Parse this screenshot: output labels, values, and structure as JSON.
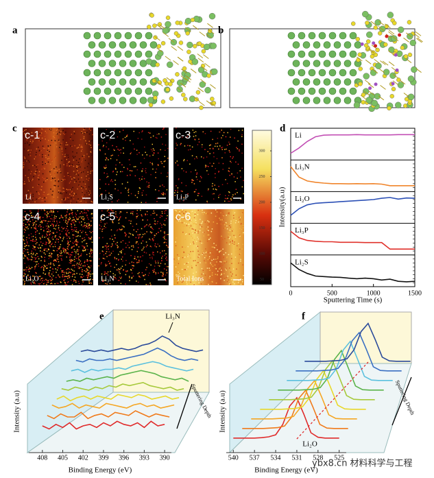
{
  "panel_a": {
    "label": "a"
  },
  "panel_b": {
    "label": "b"
  },
  "panel_c": {
    "label": "c",
    "maps": [
      {
        "tag": "c-1",
        "species": "Li"
      },
      {
        "tag": "c-2",
        "species": "Li₂S"
      },
      {
        "tag": "c-3",
        "species": "Li₃P"
      },
      {
        "tag": "c-4",
        "species": "Li₂O"
      },
      {
        "tag": "c-5",
        "species": "Li₃N"
      },
      {
        "tag": "c-6",
        "species": "Total Ions"
      }
    ],
    "colorbar_lim": [
      40,
      340
    ],
    "colorbar_ticks": [
      50,
      100,
      150,
      200,
      250,
      300
    ]
  },
  "panel_d": {
    "label": "d",
    "y_label": "Intensity(a.u)",
    "x_label": "Sputtering Time (s)",
    "xlim": [
      0,
      1500
    ],
    "xticks": [
      0,
      500,
      1000,
      1500
    ],
    "x": [
      0,
      100,
      200,
      300,
      400,
      500,
      600,
      700,
      800,
      900,
      1000,
      1100,
      1200,
      1300,
      1400,
      1500
    ],
    "series": [
      {
        "name": "Li",
        "color": "#c24fb4",
        "values": [
          0.15,
          0.35,
          0.6,
          0.78,
          0.84,
          0.85,
          0.85,
          0.85,
          0.86,
          0.85,
          0.85,
          0.85,
          0.85,
          0.86,
          0.86,
          0.86
        ]
      },
      {
        "name": "Li₃N",
        "color": "#f0842a",
        "values": [
          0.85,
          0.45,
          0.3,
          0.25,
          0.22,
          0.2,
          0.2,
          0.19,
          0.2,
          0.19,
          0.2,
          0.18,
          0.12,
          0.12,
          0.12,
          0.12
        ]
      },
      {
        "name": "Li₂O",
        "color": "#2b4fb5",
        "values": [
          0.2,
          0.45,
          0.6,
          0.66,
          0.68,
          0.7,
          0.72,
          0.74,
          0.76,
          0.78,
          0.8,
          0.85,
          0.88,
          0.82,
          0.86,
          0.85
        ]
      },
      {
        "name": "Li₃P",
        "color": "#e0302a",
        "values": [
          0.8,
          0.55,
          0.45,
          0.42,
          0.4,
          0.4,
          0.38,
          0.38,
          0.38,
          0.37,
          0.37,
          0.37,
          0.12,
          0.12,
          0.12,
          0.12
        ]
      },
      {
        "name": "Li₂S",
        "color": "#111111",
        "values": [
          0.8,
          0.55,
          0.4,
          0.3,
          0.28,
          0.26,
          0.25,
          0.22,
          0.2,
          0.22,
          0.2,
          0.15,
          0.18,
          0.1,
          0.08,
          0.1
        ]
      }
    ]
  },
  "panel_e": {
    "label": "e",
    "annotation": "Li₃N",
    "x_label": "Binding Energy (eV)",
    "y_label": "Intensity (a.u)",
    "depth_label": "Sputtering Depth",
    "xlim": [
      410,
      389
    ],
    "xticks": [
      408,
      405,
      402,
      399,
      396,
      393,
      390
    ],
    "x": [
      408,
      407,
      406,
      405,
      404,
      403,
      402,
      401,
      400,
      399,
      398,
      397,
      396,
      395,
      394,
      393,
      392,
      391,
      390
    ],
    "series": [
      {
        "color": "#e02a2a",
        "values": [
          0.2,
          0.1,
          0.25,
          0.15,
          0.3,
          0.1,
          0.2,
          0.25,
          0.15,
          0.3,
          0.2,
          0.35,
          0.25,
          0.2,
          0.3,
          0.15,
          0.35,
          0.2,
          0.25
        ]
      },
      {
        "color": "#f07a1a",
        "values": [
          0.25,
          0.15,
          0.3,
          0.2,
          0.2,
          0.35,
          0.15,
          0.25,
          0.3,
          0.2,
          0.35,
          0.3,
          0.25,
          0.4,
          0.3,
          0.2,
          0.3,
          0.25,
          0.2
        ]
      },
      {
        "color": "#f5a623",
        "values": [
          0.3,
          0.2,
          0.25,
          0.35,
          0.2,
          0.3,
          0.25,
          0.2,
          0.35,
          0.3,
          0.25,
          0.2,
          0.3,
          0.35,
          0.25,
          0.3,
          0.2,
          0.25,
          0.3
        ]
      },
      {
        "color": "#e8d82a",
        "values": [
          0.2,
          0.3,
          0.15,
          0.25,
          0.3,
          0.2,
          0.3,
          0.25,
          0.2,
          0.35,
          0.3,
          0.25,
          0.35,
          0.3,
          0.2,
          0.25,
          0.3,
          0.2,
          0.25
        ]
      },
      {
        "color": "#a6c93a",
        "values": [
          0.25,
          0.2,
          0.3,
          0.25,
          0.2,
          0.3,
          0.25,
          0.35,
          0.3,
          0.4,
          0.35,
          0.4,
          0.45,
          0.35,
          0.3,
          0.25,
          0.3,
          0.2,
          0.25
        ]
      },
      {
        "color": "#5ab34a",
        "values": [
          0.2,
          0.25,
          0.2,
          0.3,
          0.25,
          0.3,
          0.35,
          0.3,
          0.4,
          0.45,
          0.5,
          0.55,
          0.5,
          0.45,
          0.35,
          0.3,
          0.25,
          0.3,
          0.2
        ]
      },
      {
        "color": "#5bc0de",
        "values": [
          0.25,
          0.3,
          0.2,
          0.3,
          0.25,
          0.3,
          0.3,
          0.35,
          0.3,
          0.4,
          0.45,
          0.5,
          0.55,
          0.5,
          0.4,
          0.35,
          0.3,
          0.25,
          0.3
        ]
      },
      {
        "color": "#3a6fc2",
        "values": [
          0.3,
          0.25,
          0.35,
          0.3,
          0.3,
          0.35,
          0.3,
          0.35,
          0.4,
          0.45,
          0.5,
          0.6,
          0.7,
          0.6,
          0.45,
          0.35,
          0.3,
          0.35,
          0.3
        ]
      },
      {
        "color": "#2a4a9a",
        "values": [
          0.3,
          0.35,
          0.3,
          0.35,
          0.3,
          0.35,
          0.4,
          0.35,
          0.4,
          0.5,
          0.55,
          0.65,
          0.8,
          0.7,
          0.5,
          0.4,
          0.35,
          0.3,
          0.35
        ]
      }
    ]
  },
  "panel_f": {
    "label": "f",
    "annotation": "Li₂O",
    "x_label": "Binding Energy (eV)",
    "y_label": "Intensity (a.u)",
    "depth_label": "Sputtering Depth",
    "xlim": [
      541,
      524
    ],
    "xticks": [
      540,
      537,
      534,
      531,
      528,
      525
    ],
    "x": [
      540,
      539,
      538,
      537,
      536,
      535,
      534,
      533,
      532,
      531,
      530,
      529,
      528,
      527,
      526,
      525
    ],
    "series": [
      {
        "color": "#e02a2a",
        "values": [
          0.02,
          0.02,
          0.02,
          0.02,
          0.03,
          0.05,
          0.1,
          0.35,
          0.8,
          1.0,
          0.6,
          0.15,
          0.04,
          0.02,
          0.02,
          0.02
        ]
      },
      {
        "color": "#f07a1a",
        "values": [
          0.02,
          0.02,
          0.02,
          0.02,
          0.03,
          0.04,
          0.08,
          0.3,
          0.75,
          0.95,
          0.55,
          0.12,
          0.03,
          0.02,
          0.02,
          0.02
        ]
      },
      {
        "color": "#f5a623",
        "values": [
          0.02,
          0.02,
          0.02,
          0.02,
          0.03,
          0.04,
          0.08,
          0.3,
          0.75,
          0.95,
          0.55,
          0.12,
          0.03,
          0.02,
          0.02,
          0.02
        ]
      },
      {
        "color": "#e8d82a",
        "values": [
          0.02,
          0.02,
          0.02,
          0.02,
          0.03,
          0.04,
          0.08,
          0.3,
          0.74,
          0.96,
          0.55,
          0.12,
          0.03,
          0.02,
          0.02,
          0.02
        ]
      },
      {
        "color": "#a6c93a",
        "values": [
          0.02,
          0.02,
          0.02,
          0.02,
          0.03,
          0.04,
          0.08,
          0.3,
          0.75,
          0.97,
          0.55,
          0.12,
          0.03,
          0.02,
          0.02,
          0.02
        ]
      },
      {
        "color": "#5ab34a",
        "values": [
          0.02,
          0.02,
          0.02,
          0.02,
          0.03,
          0.04,
          0.08,
          0.3,
          0.76,
          0.98,
          0.55,
          0.12,
          0.03,
          0.02,
          0.02,
          0.02
        ]
      },
      {
        "color": "#5bc0de",
        "values": [
          0.02,
          0.02,
          0.02,
          0.02,
          0.03,
          0.04,
          0.08,
          0.3,
          0.76,
          0.97,
          0.55,
          0.12,
          0.03,
          0.02,
          0.02,
          0.02
        ]
      },
      {
        "color": "#3a6fc2",
        "values": [
          0.02,
          0.02,
          0.02,
          0.02,
          0.03,
          0.04,
          0.08,
          0.3,
          0.75,
          0.95,
          0.55,
          0.12,
          0.03,
          0.02,
          0.02,
          0.02
        ]
      },
      {
        "color": "#2a4a9a",
        "values": [
          0.02,
          0.02,
          0.02,
          0.02,
          0.03,
          0.04,
          0.08,
          0.3,
          0.74,
          0.94,
          0.55,
          0.12,
          0.03,
          0.02,
          0.02,
          0.02
        ]
      }
    ]
  },
  "watermark": "ybx8.cn 材料科学与工程"
}
